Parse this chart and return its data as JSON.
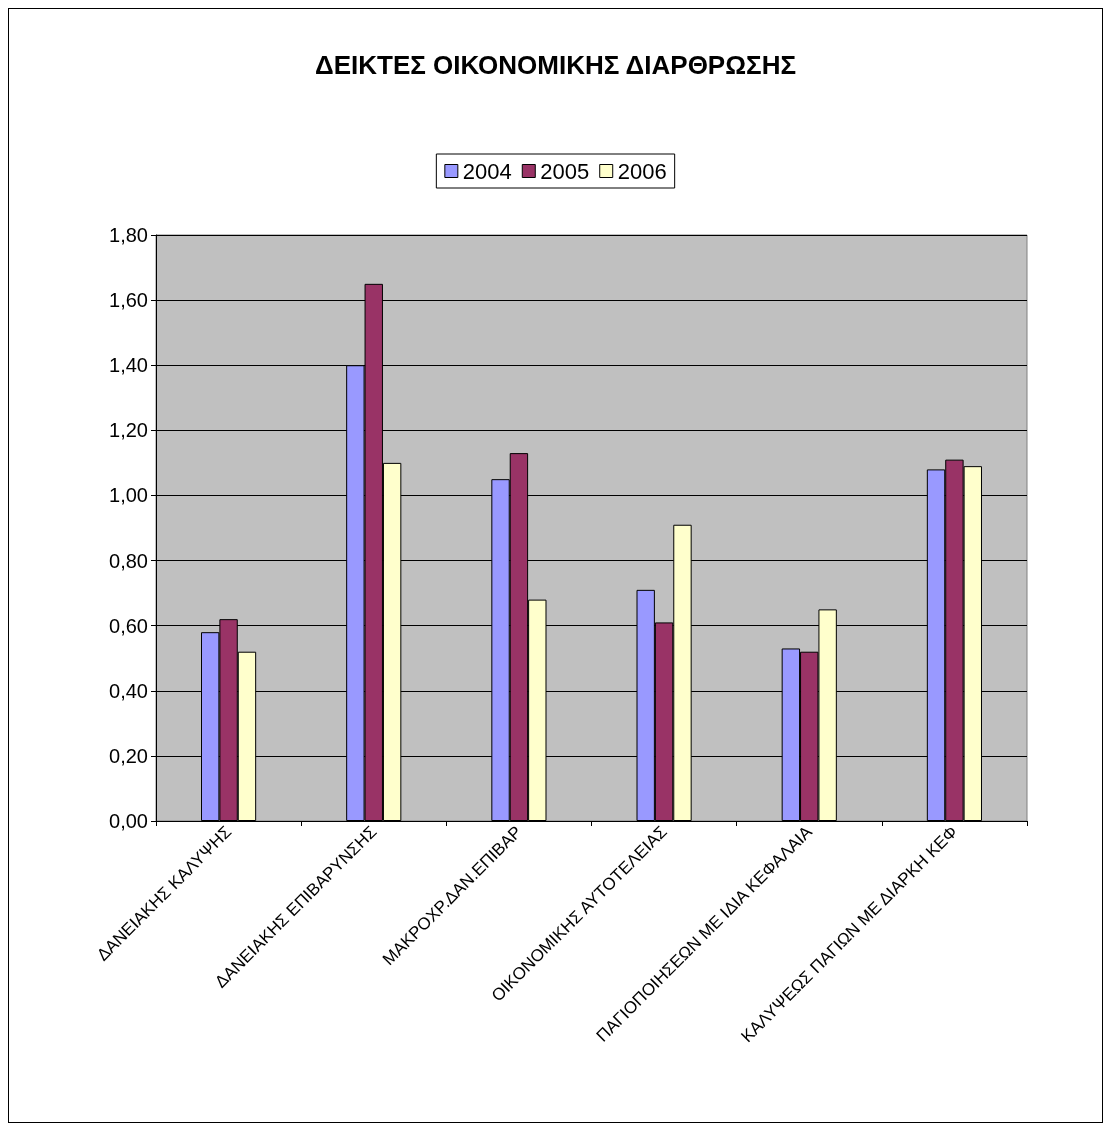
{
  "chart_data": {
    "type": "bar",
    "title": "ΔΕΙΚΤΕΣ ΟΙΚΟΝΟΜΙΚΗΣ ΔΙΑΡΘΡΩΣΗΣ",
    "categories": [
      "ΔΑΝΕΙΑΚΗΣ ΚΑΛΥΨΗΣ",
      "ΔΑΝΕΙΑΚΗΣ ΕΠΙΒΑΡΥΝΣΗΣ",
      "ΜΑΚΡΟΧΡ.ΔΑΝ.ΕΠΙΒΑΡ",
      "ΟΙΚΟΝΟΜΙΚΗΣ ΑΥΤΟΤΕΛΕΙΑΣ",
      "ΠΑΓΙΟΠΟΙΗΣΕΩΝ ΜΕ ΙΔΙΑ ΚΕΦΑΛΑΙΑ",
      "ΚΑΛΥΨΕΩΣ ΠΑΓΙΩΝ ΜΕ ΔΙΑΡΚΗ ΚΕΦ"
    ],
    "series": [
      {
        "name": "2004",
        "color": "#9999ff",
        "values": [
          0.58,
          1.4,
          1.05,
          0.71,
          0.53,
          1.08
        ]
      },
      {
        "name": "2005",
        "color": "#993366",
        "values": [
          0.62,
          1.65,
          1.13,
          0.61,
          0.52,
          1.11
        ]
      },
      {
        "name": "2006",
        "color": "#ffffcc",
        "values": [
          0.52,
          1.1,
          0.68,
          0.91,
          0.65,
          1.09
        ]
      }
    ],
    "ylim": [
      0,
      1.8
    ],
    "yticks": [
      {
        "value": 0,
        "label": "0,00"
      },
      {
        "value": 0.2,
        "label": "0,20"
      },
      {
        "value": 0.4,
        "label": "0,40"
      },
      {
        "value": 0.6,
        "label": "0,60"
      },
      {
        "value": 0.8,
        "label": "0,80"
      },
      {
        "value": 1,
        "label": "1,00"
      },
      {
        "value": 1.2,
        "label": "1,20"
      },
      {
        "value": 1.4,
        "label": "1,40"
      },
      {
        "value": 1.6,
        "label": "1,60"
      },
      {
        "value": 1.8,
        "label": "1,80"
      }
    ],
    "grid": "y",
    "legend": "top"
  }
}
